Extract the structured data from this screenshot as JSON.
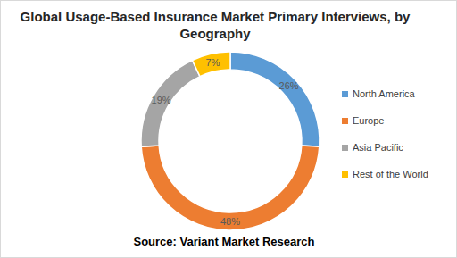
{
  "chart_data": {
    "type": "pie",
    "title": "Global Usage-Based Insurance Market Primary Interviews, by Geography",
    "subtitle": "Source: Variant Market Research",
    "categories": [
      "North America",
      "Europe",
      "Asia Pacific",
      "Rest of the World"
    ],
    "values": [
      26,
      48,
      19,
      7
    ],
    "value_labels": [
      "26%",
      "48%",
      "19%",
      "7%"
    ],
    "colors": [
      "#5b9bd5",
      "#ed7d31",
      "#a5a5a5",
      "#ffc000"
    ],
    "data_labels": true,
    "legend": "right"
  }
}
